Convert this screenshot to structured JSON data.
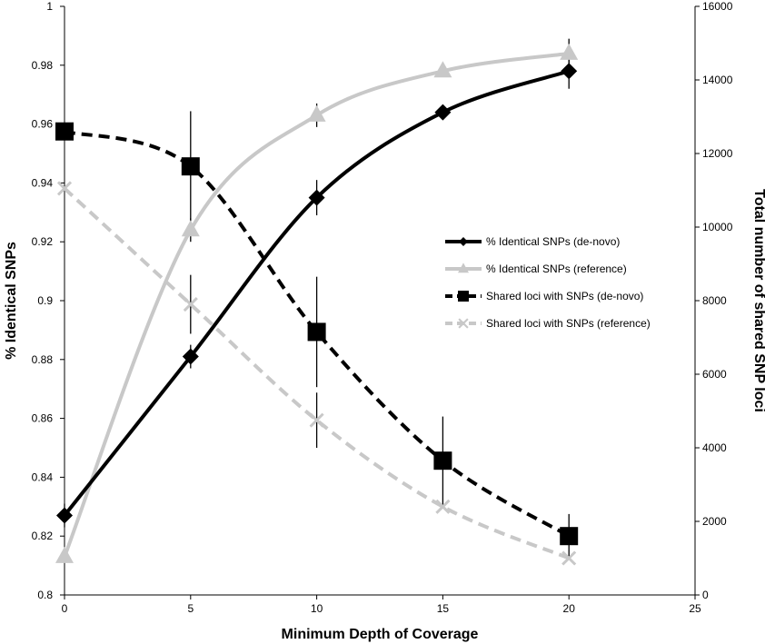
{
  "chart_data": {
    "type": "line",
    "title": "",
    "xlabel": "Minimum Depth of Coverage",
    "ylabel": "% Identical SNPs",
    "y2label": "Total  number of shared SNP loci",
    "xlim": [
      0,
      25
    ],
    "ylim": [
      0.8,
      1.0
    ],
    "y2lim": [
      0,
      16000
    ],
    "x_ticks": [
      "0",
      "5",
      "10",
      "15",
      "20",
      "25"
    ],
    "y_ticks": [
      "0.8",
      "0.82",
      "0.84",
      "0.86",
      "0.88",
      "0.9",
      "0.92",
      "0.94",
      "0.96",
      "0.98",
      "1"
    ],
    "y2_ticks": [
      "0",
      "2000",
      "4000",
      "6000",
      "8000",
      "10000",
      "12000",
      "14000",
      "16000"
    ],
    "x_tick_values": [
      0,
      5,
      10,
      15,
      20,
      25
    ],
    "y_tick_values": [
      0.8,
      0.82,
      0.84,
      0.86,
      0.88,
      0.9,
      0.92,
      0.94,
      0.96,
      0.98,
      1.0
    ],
    "y2_tick_values": [
      0,
      2000,
      4000,
      6000,
      8000,
      10000,
      12000,
      14000,
      16000
    ],
    "legend_position": "right-center",
    "grid": false,
    "x": [
      0,
      5,
      10,
      15,
      20
    ],
    "series": [
      {
        "name": "% Identical SNPs (de-novo)",
        "axis": "left",
        "values": [
          0.827,
          0.881,
          0.935,
          0.964,
          0.978
        ],
        "errors": [
          0.004,
          0.004,
          0.006,
          0.001,
          0.006
        ],
        "color": "#000000",
        "dashed": false,
        "marker": "diamond"
      },
      {
        "name": "% Identical SNPs (reference)",
        "axis": "left",
        "values": [
          0.813,
          0.924,
          0.963,
          0.978,
          0.984
        ],
        "errors": [
          0.001,
          0.004,
          0.004,
          0.001,
          0.005
        ],
        "color": "#c8c8c8",
        "dashed": false,
        "marker": "triangle"
      },
      {
        "name": "Shared loci with SNPs (de-novo)",
        "axis": "right",
        "values": [
          12600,
          11650,
          7150,
          3650,
          1600
        ],
        "errors": [
          0,
          1500,
          1500,
          1200,
          600
        ],
        "color": "#000000",
        "dashed": true,
        "marker": "square"
      },
      {
        "name": "Shared loci with SNPs (reference)",
        "axis": "right",
        "values": [
          11050,
          7900,
          4750,
          2400,
          1000
        ],
        "errors": [
          0,
          800,
          750,
          0,
          0
        ],
        "color": "#c8c8c8",
        "dashed": true,
        "marker": "x"
      }
    ]
  }
}
